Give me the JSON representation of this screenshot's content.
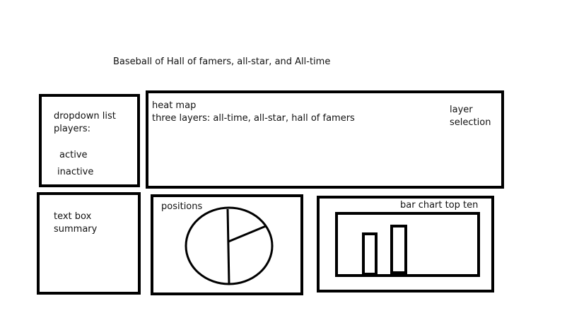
{
  "title": "Baseball of Hall of famers, all-star, and All-time",
  "dropdown": {
    "line1": "dropdown list",
    "line2": "players:",
    "option_active": "active",
    "option_inactive": "inactive"
  },
  "heatmap": {
    "line1": "heat map",
    "line2": "three layers: all-time, all-star, hall of famers",
    "layer_line1": "layer",
    "layer_line2": "selection"
  },
  "textbox": {
    "line1": "text box",
    "line2": "summary"
  },
  "positions": {
    "label": "positions"
  },
  "barchart": {
    "label": "bar chart top ten"
  }
}
